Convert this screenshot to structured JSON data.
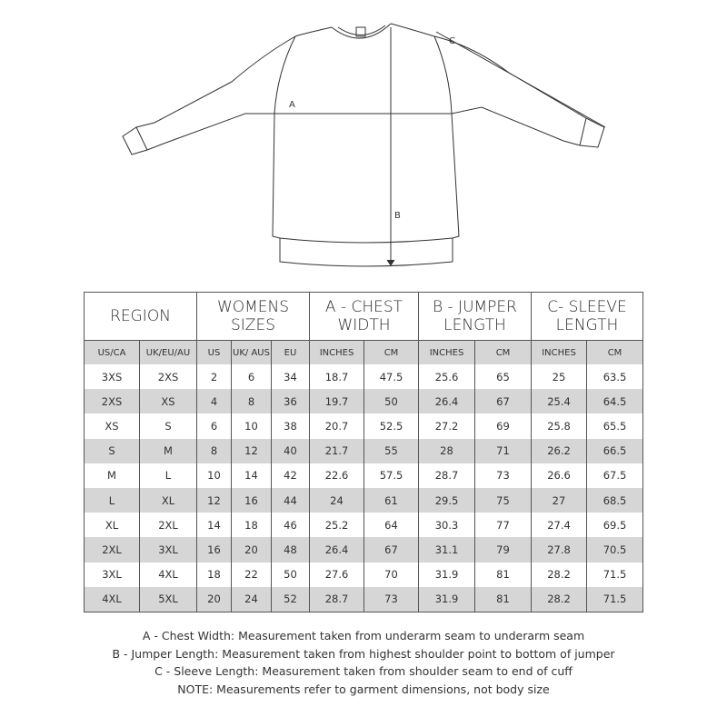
{
  "diagram": {
    "labels": {
      "a": "A",
      "b": "B",
      "c": "C"
    }
  },
  "table": {
    "headers": [
      "REGION",
      "WOMENS SIZES",
      "A - CHEST WIDTH",
      "B - JUMPER LENGTH",
      "C- SLEEVE LENGTH"
    ],
    "subheaders": [
      "US/CA",
      "UK/EU/AU",
      "US",
      "UK/ AUS",
      "EU",
      "INCHES",
      "CM",
      "INCHES",
      "CM",
      "INCHES",
      "CM"
    ],
    "rows": [
      [
        "3XS",
        "2XS",
        "2",
        "6",
        "34",
        "18.7",
        "47.5",
        "25.6",
        "65",
        "25",
        "63.5"
      ],
      [
        "2XS",
        "XS",
        "4",
        "8",
        "36",
        "19.7",
        "50",
        "26.4",
        "67",
        "25.4",
        "64.5"
      ],
      [
        "XS",
        "S",
        "6",
        "10",
        "38",
        "20.7",
        "52.5",
        "27.2",
        "69",
        "25.8",
        "65.5"
      ],
      [
        "S",
        "M",
        "8",
        "12",
        "40",
        "21.7",
        "55",
        "28",
        "71",
        "26.2",
        "66.5"
      ],
      [
        "M",
        "L",
        "10",
        "14",
        "42",
        "22.6",
        "57.5",
        "28.7",
        "73",
        "26.6",
        "67.5"
      ],
      [
        "L",
        "XL",
        "12",
        "16",
        "44",
        "24",
        "61",
        "29.5",
        "75",
        "27",
        "68.5"
      ],
      [
        "XL",
        "2XL",
        "14",
        "18",
        "46",
        "25.2",
        "64",
        "30.3",
        "77",
        "27.4",
        "69.5"
      ],
      [
        "2XL",
        "3XL",
        "16",
        "20",
        "48",
        "26.4",
        "67",
        "31.1",
        "79",
        "27.8",
        "70.5"
      ],
      [
        "3XL",
        "4XL",
        "18",
        "22",
        "50",
        "27.6",
        "70",
        "31.9",
        "81",
        "28.2",
        "71.5"
      ],
      [
        "4XL",
        "5XL",
        "20",
        "24",
        "52",
        "28.7",
        "73",
        "31.9",
        "81",
        "28.2",
        "71.5"
      ]
    ]
  },
  "notes": [
    "A - Chest Width: Measurement taken from underarm seam to underarm seam",
    "B - Jumper Length: Measurement taken from highest shoulder point to bottom of jumper",
    "C - Sleeve Length: Measurement taken from shoulder seam to end of cuff",
    "NOTE: Measurements refer to garment dimensions, not body size"
  ]
}
